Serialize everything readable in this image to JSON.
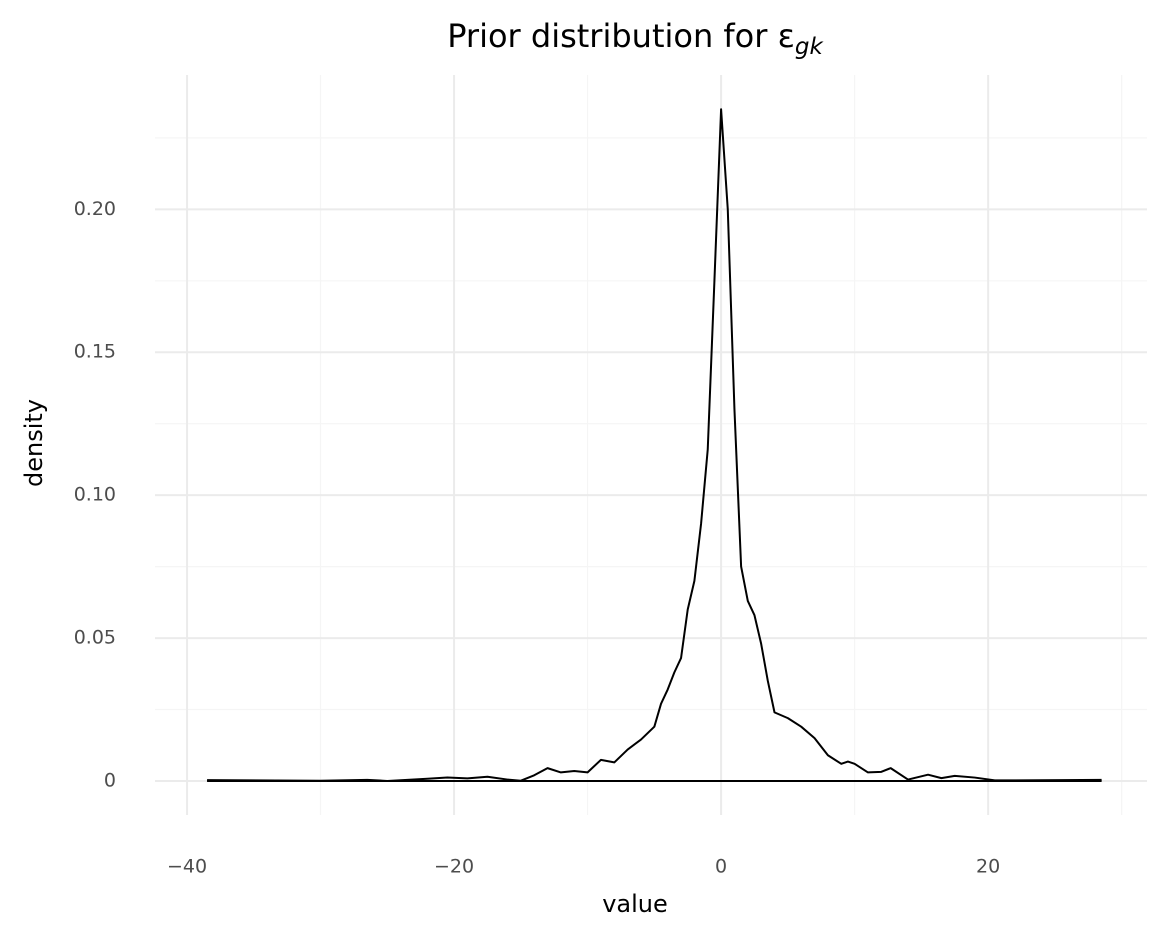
{
  "chart_data": {
    "type": "density",
    "title": "Prior distribution for ε",
    "title_subscript": "gk",
    "x_label": "value",
    "y_label": "density",
    "color": "#000000",
    "grid": true,
    "xlim": [
      -42.4,
      31.9
    ],
    "ylim": [
      -0.0119,
      0.247
    ],
    "xticks": [
      {
        "value": -40,
        "label": "−40"
      },
      {
        "value": -20,
        "label": "−20"
      },
      0,
      20
    ],
    "xminor": [
      -30,
      -10,
      10,
      30
    ],
    "yticks": [
      0,
      {
        "value": 0.05,
        "label": "0.05"
      },
      {
        "value": 0.1,
        "label": "0.10"
      },
      {
        "value": 0.15,
        "label": "0.15"
      },
      {
        "value": 0.2,
        "label": "0.20"
      }
    ],
    "yminor": [
      0.025,
      0.075,
      0.125,
      0.175,
      0.225
    ],
    "x": [
      -38.5,
      -30,
      -26.5,
      -25,
      -22,
      -20.5,
      -19,
      -17.5,
      -16,
      -15,
      -14,
      -13,
      -12,
      -11,
      -10,
      -9,
      -8,
      -7,
      -6,
      -5,
      -4.5,
      -4,
      -3.5,
      -3,
      -2.5,
      -2,
      -1.5,
      -1,
      -0.5,
      0,
      0.5,
      1,
      1.5,
      2,
      2.5,
      3,
      3.5,
      4,
      5,
      6,
      7,
      8,
      9,
      9.5,
      10,
      11,
      12,
      12.7,
      14,
      15.5,
      16.5,
      17.5,
      19,
      20.5,
      25.5,
      28.5
    ],
    "values": [
      0.0003,
      0.0001,
      0.0004,
      0,
      0.0008,
      0.0012,
      0.0009,
      0.0015,
      0.0005,
      0.0001,
      0.002,
      0.0045,
      0.003,
      0.0035,
      0.003,
      0.0074,
      0.0065,
      0.011,
      0.0145,
      0.019,
      0.027,
      0.032,
      0.038,
      0.043,
      0.06,
      0.07,
      0.09,
      0.116,
      0.175,
      0.235,
      0.2,
      0.13,
      0.075,
      0.063,
      0.058,
      0.048,
      0.035,
      0.024,
      0.022,
      0.019,
      0.015,
      0.009,
      0.006,
      0.0068,
      0.006,
      0.003,
      0.0032,
      0.0045,
      0.0005,
      0.0022,
      0.001,
      0.0018,
      0.0012,
      0.0002,
      0.0003,
      0.0004
    ]
  }
}
